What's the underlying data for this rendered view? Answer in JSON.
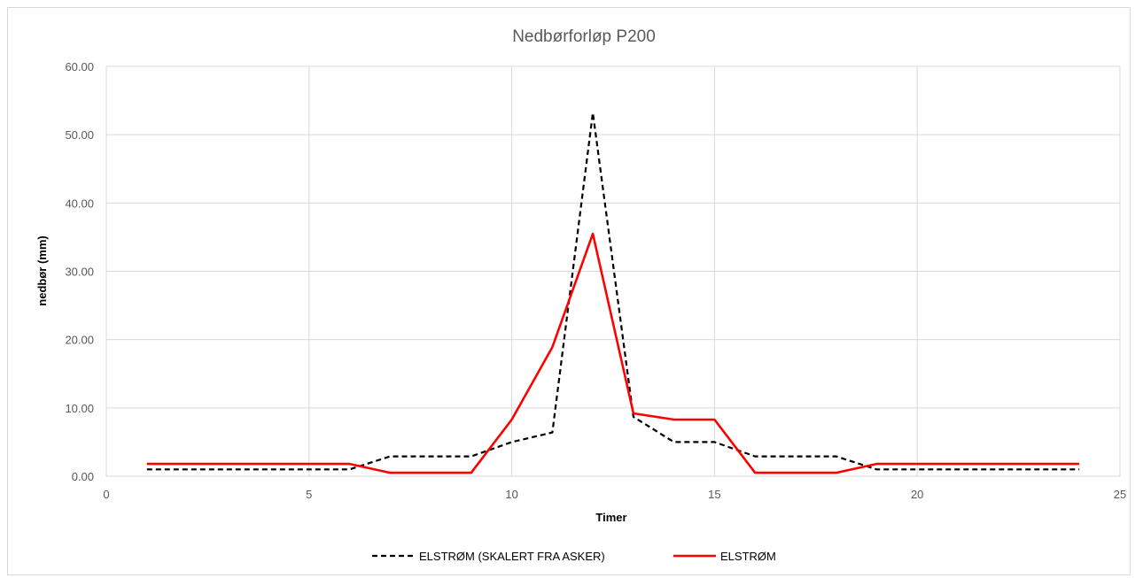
{
  "chart_data": {
    "type": "scatter",
    "title": "Nedbørforløp P200",
    "xlabel": "Timer",
    "ylabel": "nedbør (mm)",
    "xlim": [
      0,
      25
    ],
    "ylim": [
      0,
      60
    ],
    "x_ticks": [
      0,
      5,
      10,
      15,
      20,
      25
    ],
    "y_ticks": [
      0,
      10,
      20,
      30,
      40,
      50,
      60
    ],
    "x_tick_labels": [
      "0",
      "5",
      "10",
      "15",
      "20",
      "25"
    ],
    "y_tick_labels": [
      "0.00",
      "10.00",
      "20.00",
      "30.00",
      "40.00",
      "50.00",
      "60.00"
    ],
    "grid": true,
    "legend_position": "bottom",
    "series": [
      {
        "name": "ELSTRØM (SKALERT FRA ASKER)",
        "color": "#000000",
        "dash": "dashed",
        "x": [
          1,
          2,
          3,
          4,
          5,
          6,
          7,
          8,
          9,
          10,
          11,
          12,
          13,
          14,
          15,
          16,
          17,
          18,
          19,
          20,
          21,
          22,
          23,
          24
        ],
        "y": [
          1.0,
          1.0,
          1.0,
          1.0,
          1.0,
          1.0,
          2.9,
          2.9,
          2.9,
          5.0,
          6.4,
          53.2,
          8.7,
          5.0,
          5.0,
          2.9,
          2.9,
          2.9,
          1.0,
          1.0,
          1.0,
          1.0,
          1.0,
          1.0
        ]
      },
      {
        "name": "ELSTRØM",
        "color": "#ff0000",
        "dash": "solid",
        "x": [
          1,
          2,
          3,
          4,
          5,
          6,
          7,
          8,
          9,
          10,
          11,
          12,
          13,
          14,
          15,
          16,
          17,
          18,
          19,
          20,
          21,
          22,
          23,
          24
        ],
        "y": [
          1.8,
          1.8,
          1.8,
          1.8,
          1.8,
          1.8,
          0.5,
          0.5,
          0.5,
          8.3,
          18.9,
          35.5,
          9.2,
          8.3,
          8.3,
          0.5,
          0.5,
          0.5,
          1.8,
          1.8,
          1.8,
          1.8,
          1.8,
          1.8
        ]
      }
    ]
  }
}
